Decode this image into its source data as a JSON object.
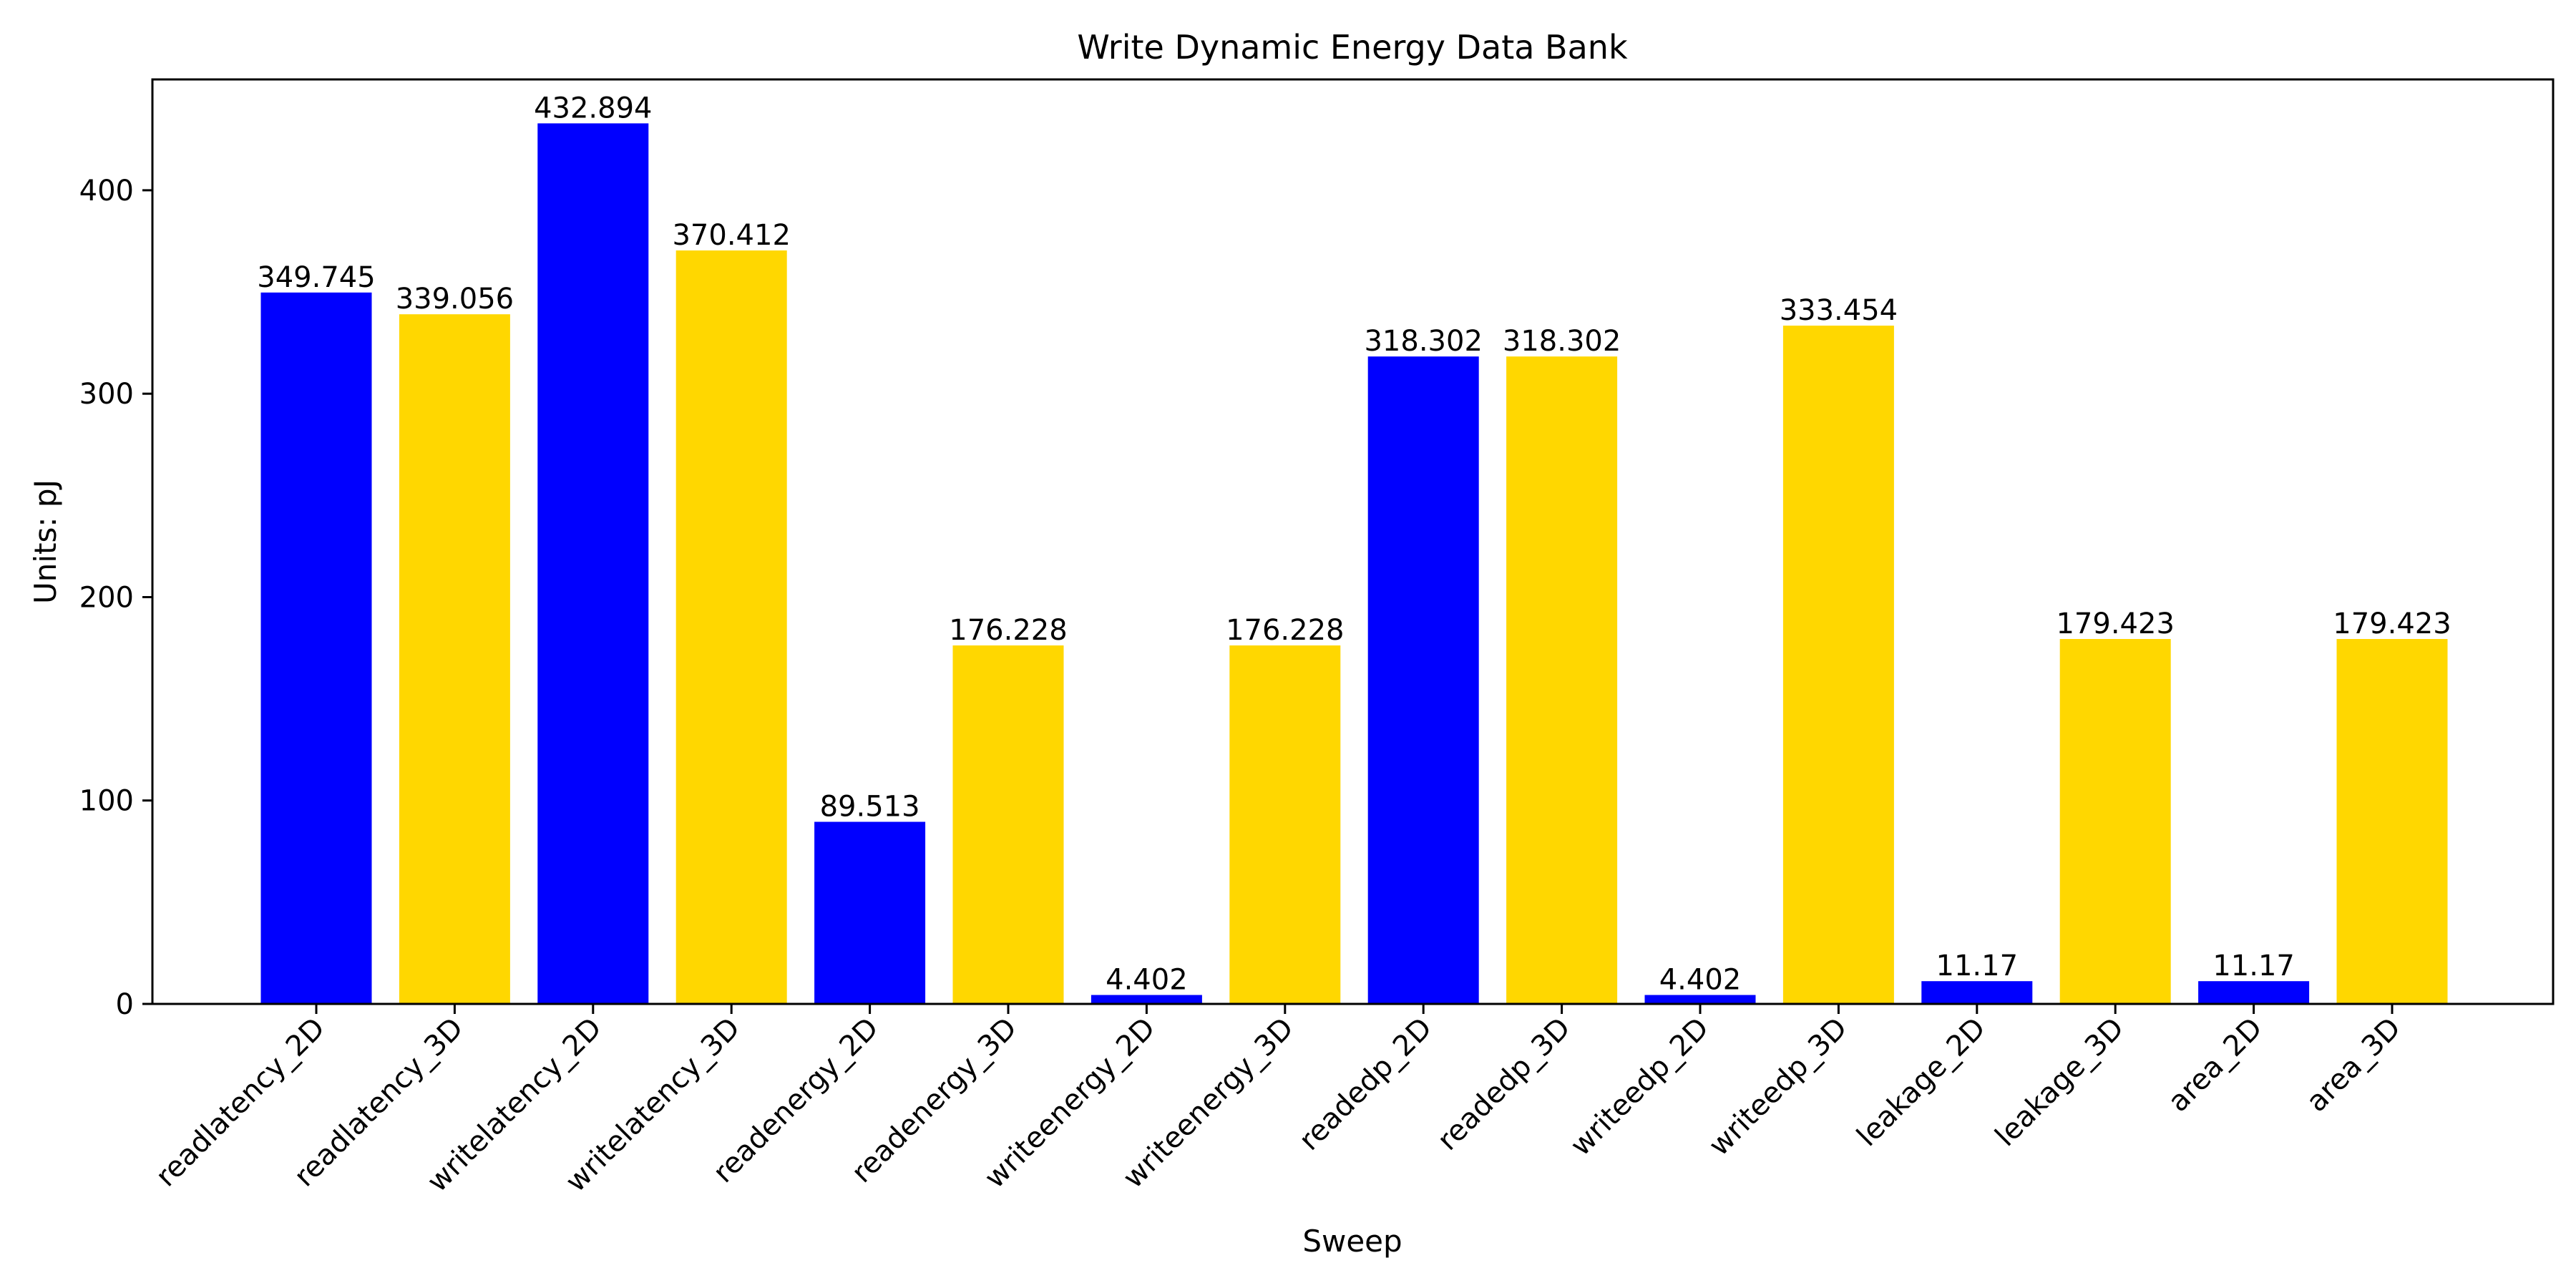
{
  "chart_data": {
    "type": "bar",
    "title": "Write Dynamic Energy Data Bank",
    "xlabel": "Sweep",
    "ylabel": "Units: pJ",
    "categories": [
      "readlatency_2D",
      "readlatency_3D",
      "writelatency_2D",
      "writelatency_3D",
      "readenergy_2D",
      "readenergy_3D",
      "writeenergy_2D",
      "writeenergy_3D",
      "readedp_2D",
      "readedp_3D",
      "writeedp_2D",
      "writeedp_3D",
      "leakage_2D",
      "leakage_3D",
      "area_2D",
      "area_3D"
    ],
    "values": [
      349.745,
      339.056,
      432.894,
      370.412,
      89.513,
      176.228,
      4.402,
      176.228,
      318.302,
      318.302,
      4.402,
      333.454,
      11.17,
      179.423,
      11.17,
      179.423
    ],
    "value_labels": [
      "349.745",
      "339.056",
      "432.894",
      "370.412",
      "89.513",
      "176.228",
      "4.402",
      "176.228",
      "318.302",
      "318.302",
      "4.402",
      "333.454",
      "11.17",
      "179.423",
      "11.17",
      "179.423"
    ],
    "bar_colors": [
      "#0000ff",
      "#ffd700",
      "#0000ff",
      "#ffd700",
      "#0000ff",
      "#ffd700",
      "#0000ff",
      "#ffd700",
      "#0000ff",
      "#ffd700",
      "#0000ff",
      "#ffd700",
      "#0000ff",
      "#ffd700",
      "#0000ff",
      "#ffd700"
    ],
    "ylim": [
      0,
      454.5
    ],
    "yticks": [
      0,
      100,
      200,
      300,
      400
    ],
    "grid": false,
    "legend": "none"
  }
}
